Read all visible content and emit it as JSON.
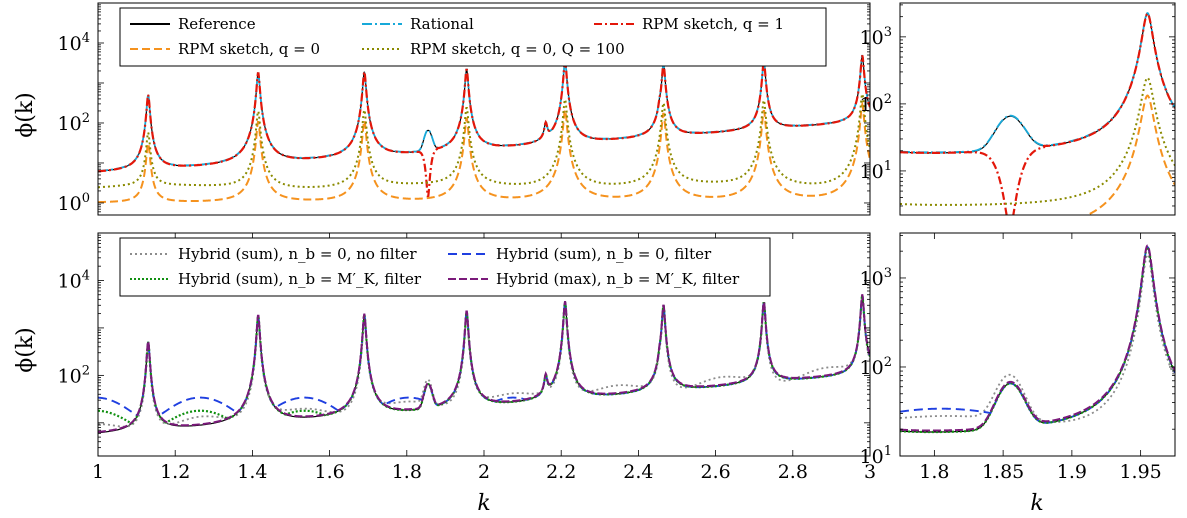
{
  "chart_data": [
    {
      "panel": "top-left",
      "type": "line",
      "ylabel": "ϕ(k)",
      "xlabel": "",
      "xlim": [
        1,
        3
      ],
      "ylim": [
        0.5,
        100000
      ],
      "yscale": "log",
      "yticks": [
        {
          "value": 1,
          "label": "10^0"
        },
        {
          "value": 100,
          "label": "10^2"
        },
        {
          "value": 10000,
          "label": "10^4"
        }
      ],
      "xticks": [],
      "peaks": [
        1.13,
        1.415,
        1.69,
        1.955,
        2.21,
        2.465,
        2.725,
        2.98
      ],
      "dip_k": 1.855,
      "legend": {
        "position": "top",
        "entries": [
          {
            "label": "Reference",
            "color": "#000000",
            "dash": ""
          },
          {
            "label": "Rational",
            "color": "#17a9d9",
            "dash": "10 3 2 3"
          },
          {
            "label": "RPM sketch, q = 1",
            "color": "#e3170a",
            "dash": "8 3 2 3"
          },
          {
            "label": "RPM sketch, q = 0",
            "color": "#f5921e",
            "dash": "8 4"
          },
          {
            "label": "RPM sketch, q = 0, Q = 100",
            "color": "#8a8a00",
            "dash": "2 3"
          }
        ]
      },
      "series": [
        {
          "name": "Reference",
          "color": "#000000",
          "width": 1.2,
          "dash": "",
          "model": "ref",
          "amp": 1.0,
          "shift": 0
        },
        {
          "name": "Rational",
          "color": "#17a9d9",
          "width": 1.8,
          "dash": "10 3 2 3",
          "model": "ref",
          "amp": 1.0,
          "shift": 0.02
        },
        {
          "name": "RPM sketch, q = 1",
          "color": "#e3170a",
          "width": 2.2,
          "dash": "8 3 2 3",
          "model": "q1",
          "amp": 1.0,
          "shift": 0
        },
        {
          "name": "RPM sketch, q = 0",
          "color": "#f5921e",
          "width": 2.0,
          "dash": "8 4",
          "model": "low",
          "amp": 0.06,
          "shift": 0
        },
        {
          "name": "RPM sketch, q = 0, Q = 100",
          "color": "#8a8a00",
          "width": 2.0,
          "dash": "2 3",
          "model": "low",
          "amp": 0.11,
          "shift": 0.55
        }
      ]
    },
    {
      "panel": "top-right",
      "type": "line",
      "ylabel": "",
      "xlabel": "",
      "xlim": [
        1.775,
        1.975
      ],
      "ylim": [
        2.2,
        3200
      ],
      "yscale": "log",
      "yticks": [
        {
          "value": 10,
          "label": "10^1"
        },
        {
          "value": 100,
          "label": "10^2"
        },
        {
          "value": 1000,
          "label": "10^3"
        }
      ],
      "xticks": [],
      "series_ref": "top-left"
    },
    {
      "panel": "bottom-left",
      "type": "line",
      "ylabel": "ϕ(k)",
      "xlabel": "k",
      "xlim": [
        1,
        3
      ],
      "ylim": [
        2,
        100000
      ],
      "yscale": "log",
      "yticks": [
        {
          "value": 100,
          "label": "10^2"
        },
        {
          "value": 10000,
          "label": "10^4"
        }
      ],
      "xticks": [
        1,
        1.2,
        1.4,
        1.6,
        1.8,
        2,
        2.2,
        2.4,
        2.6,
        2.8,
        3
      ],
      "legend": {
        "position": "top",
        "entries": [
          {
            "label": "Hybrid (sum), n_b = 0, no filter",
            "color": "#8c8c8c",
            "dash": "2 3"
          },
          {
            "label": "Hybrid (sum), n_b = 0, filter",
            "color": "#1f3fe0",
            "dash": "9 5"
          },
          {
            "label": "Hybrid (sum), n_b = M′_K, filter",
            "color": "#119011",
            "dash": "2 2"
          },
          {
            "label": "Hybrid (max), n_b = M′_K, filter",
            "color": "#7a1a7a",
            "dash": "8 3"
          }
        ]
      },
      "series": [
        {
          "name": "Reference",
          "color": "#000000",
          "width": 1.2,
          "dash": "",
          "model": "ref",
          "amp": 1.0,
          "shift": 0
        },
        {
          "name": "Hybrid (sum), n_b = 0, no filter",
          "color": "#8c8c8c",
          "width": 1.8,
          "dash": "2 3",
          "model": "nofilter",
          "amp": 1.0,
          "shift": 0
        },
        {
          "name": "Hybrid (sum), n_b = 0, filter",
          "color": "#1f3fe0",
          "width": 1.9,
          "dash": "9 5",
          "model": "filter",
          "amp": 1.0,
          "shift": 0
        },
        {
          "name": "Hybrid (sum), n_b = M′_K, filter",
          "color": "#119011",
          "width": 2.2,
          "dash": "2 2",
          "model": "green",
          "amp": 1.0,
          "shift": 0
        },
        {
          "name": "Hybrid (max), n_b = M′_K, filter",
          "color": "#7a1a7a",
          "width": 2.0,
          "dash": "8 3",
          "model": "ref",
          "amp": 1.0,
          "shift": 0.04
        }
      ]
    },
    {
      "panel": "bottom-right",
      "type": "line",
      "ylabel": "",
      "xlabel": "k",
      "xlim": [
        1.775,
        1.975
      ],
      "ylim": [
        10,
        3200
      ],
      "yscale": "log",
      "yticks": [
        {
          "value": 10,
          "label": "10^1"
        },
        {
          "value": 100,
          "label": "10^2"
        },
        {
          "value": 1000,
          "label": "10^3"
        }
      ],
      "xticks": [
        1.8,
        1.85,
        1.9,
        1.95
      ],
      "series_ref": "bottom-left"
    }
  ]
}
